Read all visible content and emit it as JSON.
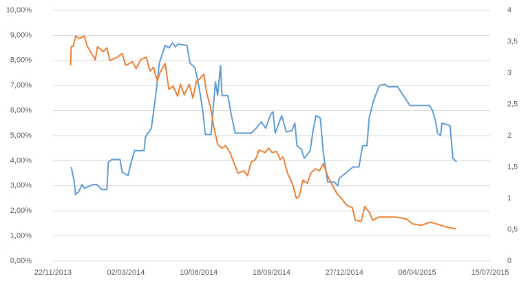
{
  "chart_data": {
    "type": "line",
    "xlim": [
      "22/11/2013",
      "15/07/2015"
    ],
    "xticks": [
      "22/11/2013",
      "02/03/2014",
      "10/06/2014",
      "18/09/2014",
      "27/12/2014",
      "06/04/2015",
      "15/07/2015"
    ],
    "ylim": [
      0,
      10
    ],
    "yticks": [
      {
        "value": 0,
        "label": "0,00%"
      },
      {
        "value": 1,
        "label": "1,00%"
      },
      {
        "value": 2,
        "label": "2,00%"
      },
      {
        "value": 3,
        "label": "3,00%"
      },
      {
        "value": 4,
        "label": "4,00%"
      },
      {
        "value": 5,
        "label": "5,00%"
      },
      {
        "value": 6,
        "label": "6,00%"
      },
      {
        "value": 7,
        "label": "7,00%"
      },
      {
        "value": 8,
        "label": "8,00%"
      },
      {
        "value": 9,
        "label": "9,00%"
      },
      {
        "value": 10,
        "label": "10,00%"
      }
    ],
    "y2lim": [
      0,
      4
    ],
    "y2ticks": [
      0,
      {
        "value": 0.5,
        "label": "0,5"
      },
      1,
      {
        "value": 1.5,
        "label": "1,5"
      },
      2,
      {
        "value": 2.5,
        "label": "2,5"
      },
      3,
      {
        "value": 3.5,
        "label": "3,5"
      },
      4
    ],
    "grid": true,
    "series": [
      {
        "color": "#5b9bd5",
        "x": [
          "17/12/2013",
          "21/12/2013",
          "23/12/2013",
          "27/12/2013",
          "01/01/2014",
          "04/01/2014",
          "16/01/2014",
          "21/01/2014",
          "28/01/2014",
          "04/02/2014",
          "06/02/2014",
          "11/02/2014",
          "22/02/2014",
          "25/02/2014",
          "05/03/2014",
          "09/03/2014",
          "14/03/2014",
          "27/03/2014",
          "29/03/2014",
          "06/04/2014",
          "12/04/2014",
          "17/04/2014",
          "25/04/2014",
          "30/04/2014",
          "05/05/2014",
          "09/05/2014",
          "13/05/2014",
          "25/05/2014",
          "29/05/2014",
          "05/06/2014",
          "10/06/2014",
          "13/06/2014",
          "16/06/2014",
          "19/06/2014",
          "27/06/2014",
          "30/06/2014",
          "03/07/2014",
          "06/07/2014",
          "10/07/2014",
          "12/07/2014",
          "20/07/2014",
          "25/07/2014",
          "30/07/2014",
          "21/08/2014",
          "28/08/2014",
          "04/09/2014",
          "10/09/2014",
          "17/09/2014",
          "20/09/2014",
          "23/09/2014",
          "02/10/2014",
          "08/10/2014",
          "16/10/2014",
          "20/10/2014",
          "23/10/2014",
          "29/10/2014",
          "02/11/2014",
          "10/11/2014",
          "14/11/2014",
          "18/11/2014",
          "24/11/2014",
          "28/11/2014",
          "04/12/2014",
          "13/12/2014",
          "18/12/2014",
          "20/12/2014",
          "08/01/2015",
          "16/01/2015",
          "21/01/2015",
          "27/01/2015",
          "30/01/2015",
          "05/02/2015",
          "13/02/2015",
          "21/02/2015",
          "25/02/2015",
          "10/03/2015",
          "27/03/2015",
          "23/04/2015",
          "27/04/2015",
          "01/05/2015",
          "04/05/2015",
          "08/05/2015",
          "10/05/2015",
          "21/05/2015",
          "23/05/2015",
          "25/05/2015",
          "30/05/2015"
        ],
        "values": [
          3.75,
          3.2,
          2.65,
          2.75,
          3.05,
          2.9,
          3.05,
          3.05,
          2.85,
          2.85,
          3.95,
          4.05,
          4.05,
          3.55,
          3.4,
          3.9,
          4.4,
          4.4,
          4.95,
          5.3,
          6.6,
          7.9,
          8.6,
          8.5,
          8.7,
          8.55,
          8.65,
          8.6,
          7.9,
          7.7,
          7.0,
          6.5,
          5.9,
          5.05,
          5.05,
          6.1,
          7.15,
          6.6,
          7.8,
          6.6,
          6.6,
          5.8,
          5.1,
          5.1,
          5.3,
          5.55,
          5.3,
          5.85,
          5.95,
          5.1,
          5.8,
          5.15,
          5.2,
          5.5,
          4.6,
          4.45,
          4.1,
          4.4,
          5.2,
          5.8,
          5.7,
          4.35,
          3.15,
          3.15,
          3.0,
          3.3,
          3.75,
          3.75,
          4.6,
          4.6,
          5.7,
          6.4,
          7.0,
          7.05,
          6.95,
          6.95,
          6.2,
          6.2,
          6.0,
          5.6,
          5.1,
          5.0,
          5.5,
          5.4,
          4.75,
          4.1,
          3.95
        ]
      },
      {
        "color": "#ed7d31",
        "axis": "y2",
        "x": [
          "16/12/2013",
          "17/12/2013",
          "20/12/2013",
          "23/12/2013",
          "28/12/2013",
          "04/01/2014",
          "08/01/2014",
          "13/01/2014",
          "19/01/2014",
          "22/01/2014",
          "30/01/2014",
          "04/02/2014",
          "08/02/2014",
          "18/02/2014",
          "25/02/2014",
          "02/03/2014",
          "11/03/2014",
          "16/03/2014",
          "23/03/2014",
          "30/03/2014",
          "04/04/2014",
          "09/04/2014",
          "14/04/2014",
          "18/04/2014",
          "25/04/2014",
          "30/04/2014",
          "06/05/2014",
          "12/05/2014",
          "16/05/2014",
          "21/05/2014",
          "28/05/2014",
          "02/06/2014",
          "07/06/2014",
          "11/06/2014",
          "17/06/2014",
          "21/06/2014",
          "26/06/2014",
          "01/07/2014",
          "06/07/2014",
          "12/07/2014",
          "17/07/2014",
          "23/07/2014",
          "29/07/2014",
          "03/08/2014",
          "11/08/2014",
          "16/08/2014",
          "21/08/2014",
          "27/08/2014",
          "01/09/2014",
          "09/09/2014",
          "14/09/2014",
          "19/09/2014",
          "25/09/2014",
          "30/09/2014",
          "04/10/2014",
          "10/10/2014",
          "17/10/2014",
          "22/10/2014",
          "26/10/2014",
          "31/10/2014",
          "06/11/2014",
          "11/11/2014",
          "17/11/2014",
          "23/11/2014",
          "28/11/2014",
          "04/12/2014",
          "10/12/2014",
          "17/12/2014",
          "23/12/2014",
          "30/12/2014",
          "07/01/2015",
          "11/01/2015",
          "19/01/2015",
          "24/01/2015",
          "30/01/2015",
          "04/02/2015",
          "12/02/2015",
          "21/02/2015",
          "08/03/2015",
          "22/03/2015",
          "31/03/2015",
          "12/04/2015",
          "24/04/2015",
          "08/05/2015",
          "17/05/2015",
          "29/05/2015"
        ],
        "values": [
          3.12,
          3.42,
          3.43,
          3.59,
          3.55,
          3.59,
          3.43,
          3.33,
          3.21,
          3.42,
          3.34,
          3.4,
          3.2,
          3.25,
          3.31,
          3.12,
          3.18,
          3.07,
          3.22,
          3.25,
          3.03,
          3.09,
          2.87,
          3.01,
          3.15,
          2.74,
          2.79,
          2.63,
          2.82,
          2.65,
          2.82,
          2.6,
          2.87,
          2.9,
          2.98,
          2.68,
          2.46,
          2.13,
          1.86,
          1.8,
          1.84,
          1.73,
          1.55,
          1.4,
          1.44,
          1.36,
          1.58,
          1.62,
          1.77,
          1.73,
          1.8,
          1.73,
          1.75,
          1.62,
          1.66,
          1.4,
          1.22,
          1.0,
          1.03,
          1.29,
          1.24,
          1.4,
          1.47,
          1.44,
          1.55,
          1.36,
          1.22,
          1.07,
          1.0,
          0.89,
          0.85,
          0.65,
          0.63,
          0.87,
          0.78,
          0.65,
          0.7,
          0.7,
          0.7,
          0.67,
          0.59,
          0.57,
          0.62,
          0.57,
          0.54,
          0.51
        ]
      }
    ]
  }
}
